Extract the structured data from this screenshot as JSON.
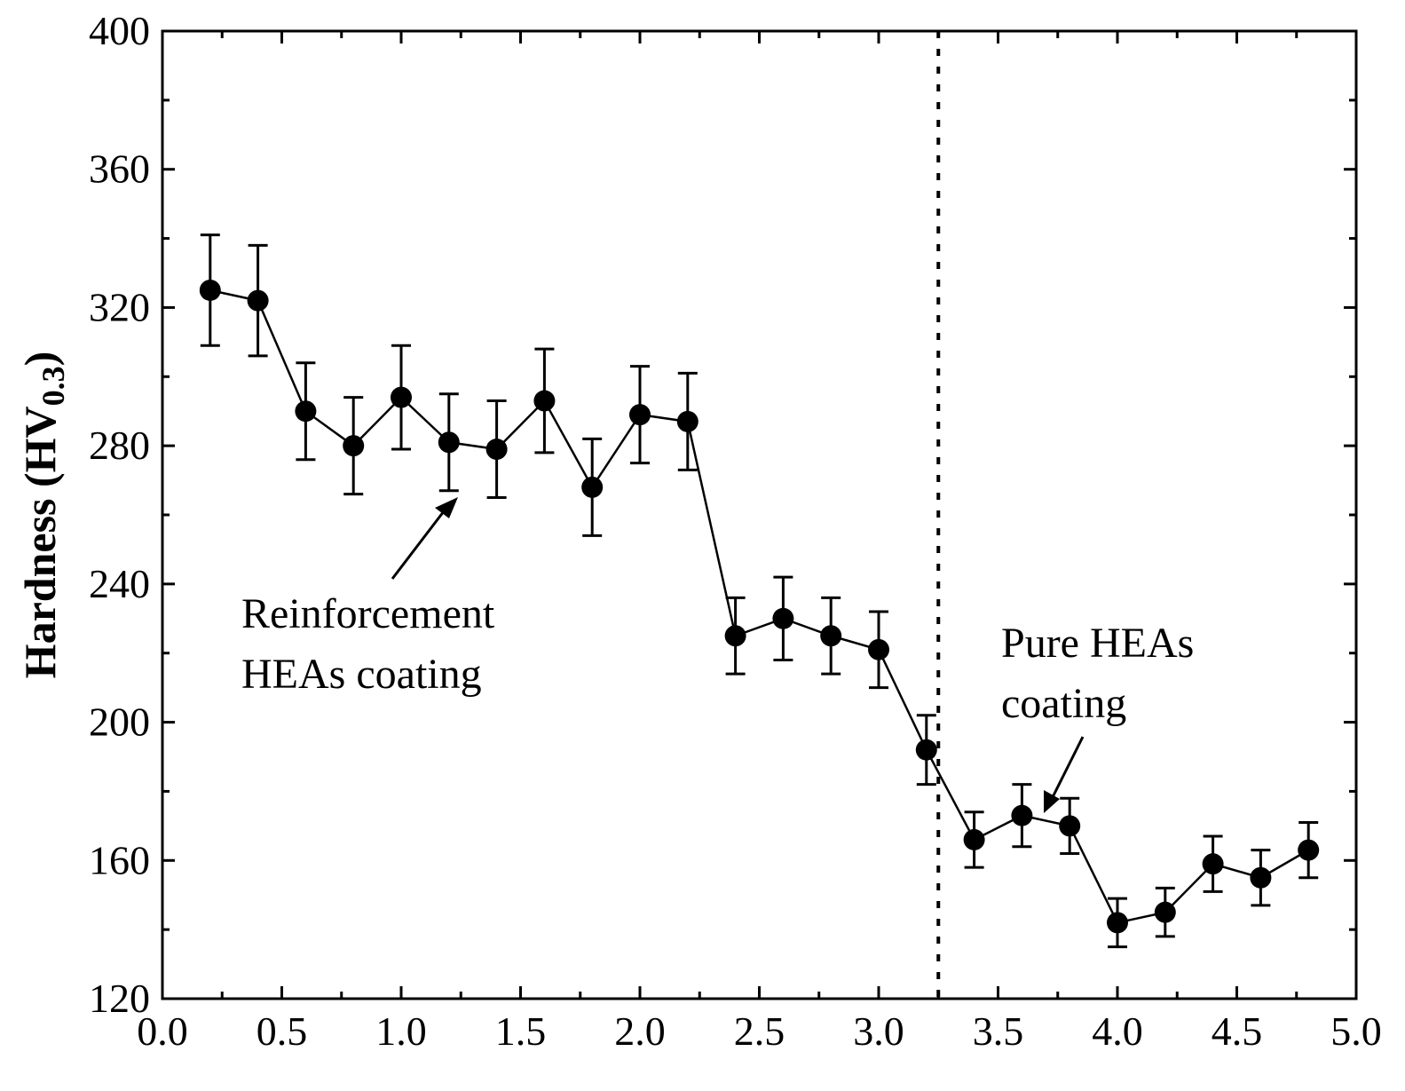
{
  "chart_data": {
    "type": "line",
    "title": "",
    "xlabel": "",
    "ylabel": "Hardness (HV",
    "ylabel_subscript": "0.3",
    "ylabel_suffix": ")",
    "xlim": [
      0.0,
      5.0
    ],
    "ylim": [
      120,
      400
    ],
    "x_ticks": [
      "0.0",
      "0.5",
      "1.0",
      "1.5",
      "2.0",
      "2.5",
      "3.0",
      "3.5",
      "4.0",
      "4.5",
      "5.0"
    ],
    "y_ticks": [
      "120",
      "160",
      "200",
      "240",
      "280",
      "320",
      "360",
      "400"
    ],
    "divider_x": 3.25,
    "annotations": {
      "left_line1": "Reinforcement",
      "left_line2": "HEAs coating",
      "right_line1": "Pure HEAs",
      "right_line2": "coating"
    },
    "series": [
      {
        "name": "Hardness",
        "x": [
          0.2,
          0.4,
          0.6,
          0.8,
          1.0,
          1.2,
          1.4,
          1.6,
          1.8,
          2.0,
          2.2,
          2.4,
          2.6,
          2.8,
          3.0,
          3.2,
          3.4,
          3.6,
          3.8,
          4.0,
          4.2,
          4.4,
          4.6,
          4.8
        ],
        "y": [
          325,
          322,
          290,
          280,
          294,
          281,
          279,
          293,
          268,
          289,
          287,
          225,
          230,
          225,
          221,
          192,
          166,
          173,
          170,
          142,
          145,
          159,
          155,
          163
        ],
        "error": [
          16,
          16,
          14,
          14,
          15,
          14,
          14,
          15,
          14,
          14,
          14,
          11,
          12,
          11,
          11,
          10,
          8,
          9,
          8,
          7,
          7,
          8,
          8,
          8
        ]
      }
    ]
  }
}
